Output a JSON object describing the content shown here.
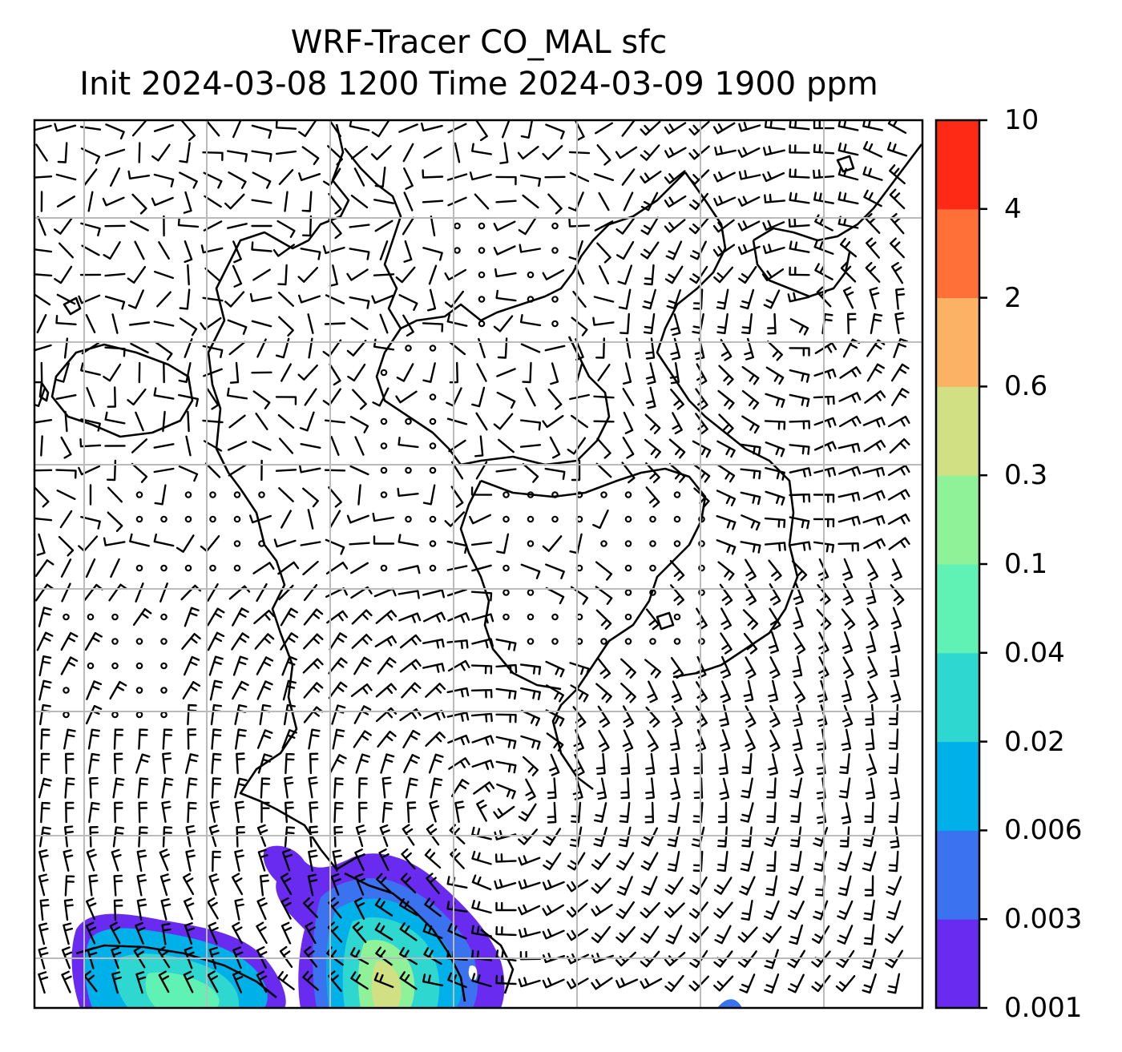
{
  "title": {
    "line1": "WRF-Tracer CO_MAL sfc",
    "line2": "Init 2024-03-08 1200 Time 2024-03-09 1900 ppm"
  },
  "colorbar": {
    "levels": [
      "0.001",
      "0.003",
      "0.006",
      "0.02",
      "0.04",
      "0.1",
      "0.3",
      "0.6",
      "2",
      "4",
      "10"
    ],
    "colors": [
      "#6a2bf0",
      "#3a72f0",
      "#00b0e8",
      "#2ed8d0",
      "#60f2b4",
      "#8ff298",
      "#d2e084",
      "#fcb264",
      "#ff7038",
      "#ff2a16"
    ]
  },
  "map": {
    "background": "#ffffff",
    "grid_color": "#bbbbbb",
    "coastline_color": "#000000",
    "barb_color": "#000000"
  }
}
